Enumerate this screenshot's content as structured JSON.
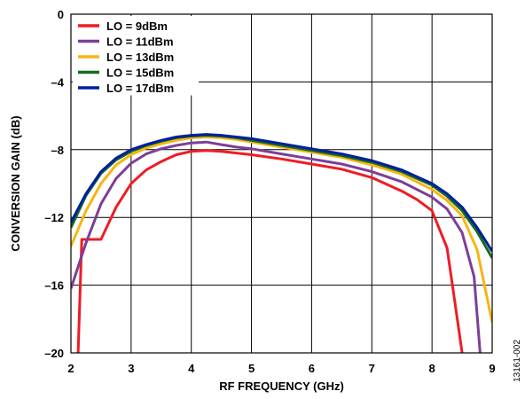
{
  "chart_data": {
    "type": "line",
    "title": "",
    "xlabel": "RF FREQUENCY (GHz)",
    "ylabel": "CONVERSION GAIN (dB)",
    "xlim": [
      2,
      9
    ],
    "ylim": [
      -20,
      0
    ],
    "xticks": [
      2,
      3,
      4,
      5,
      6,
      7,
      8,
      9
    ],
    "yticks": [
      0,
      -4,
      -8,
      -12,
      -16,
      -20
    ],
    "ytick_labels": [
      "0",
      "–4",
      "–8",
      "–12",
      "–16",
      "–20"
    ],
    "grid": true,
    "legend_position": "top-left",
    "figure_id": "13161-002",
    "series": [
      {
        "name": "LO = 9dBm",
        "color": "#ee1c25",
        "x": [
          2.12,
          2.18,
          2.25,
          2.5,
          2.75,
          3.0,
          3.25,
          3.5,
          3.75,
          4.0,
          4.25,
          4.5,
          4.75,
          5.0,
          5.5,
          6.0,
          6.5,
          7.0,
          7.5,
          7.75,
          8.0,
          8.25,
          8.4,
          8.5
        ],
        "y": [
          -20,
          -13.3,
          -13.3,
          -13.3,
          -11.4,
          -10.0,
          -9.2,
          -8.7,
          -8.3,
          -8.1,
          -8.05,
          -8.1,
          -8.2,
          -8.3,
          -8.55,
          -8.85,
          -9.15,
          -9.65,
          -10.45,
          -10.95,
          -11.6,
          -13.8,
          -17.5,
          -20
        ]
      },
      {
        "name": "LO = 11dBm",
        "color": "#7b3f98",
        "x": [
          2.0,
          2.25,
          2.5,
          2.75,
          3.0,
          3.25,
          3.5,
          3.75,
          4.0,
          4.25,
          4.5,
          4.75,
          5.0,
          5.5,
          6.0,
          6.5,
          7.0,
          7.5,
          8.0,
          8.25,
          8.5,
          8.7,
          8.8
        ],
        "y": [
          -16.2,
          -13.5,
          -11.2,
          -9.7,
          -8.8,
          -8.25,
          -7.95,
          -7.75,
          -7.6,
          -7.55,
          -7.7,
          -7.85,
          -7.95,
          -8.25,
          -8.55,
          -8.85,
          -9.3,
          -9.9,
          -10.8,
          -11.5,
          -12.9,
          -15.5,
          -20
        ]
      },
      {
        "name": "LO = 13dBm",
        "color": "#f7b512",
        "x": [
          2.0,
          2.25,
          2.5,
          2.75,
          3.0,
          3.25,
          3.5,
          3.75,
          4.0,
          4.25,
          4.5,
          4.75,
          5.0,
          5.5,
          6.0,
          6.5,
          7.0,
          7.5,
          8.0,
          8.25,
          8.5,
          8.75,
          9.0
        ],
        "y": [
          -13.7,
          -11.6,
          -10.0,
          -8.9,
          -8.3,
          -7.9,
          -7.65,
          -7.45,
          -7.3,
          -7.25,
          -7.3,
          -7.4,
          -7.55,
          -7.85,
          -8.15,
          -8.45,
          -8.9,
          -9.45,
          -10.35,
          -11.0,
          -11.9,
          -13.9,
          -18.2
        ]
      },
      {
        "name": "LO = 15dBm",
        "color": "#166c1e",
        "x": [
          2.0,
          2.25,
          2.5,
          2.75,
          3.0,
          3.25,
          3.5,
          3.75,
          4.0,
          4.25,
          4.5,
          4.75,
          5.0,
          5.5,
          6.0,
          6.5,
          7.0,
          7.5,
          8.0,
          8.25,
          8.5,
          8.75,
          9.0
        ],
        "y": [
          -12.6,
          -10.7,
          -9.4,
          -8.6,
          -8.1,
          -7.75,
          -7.5,
          -7.3,
          -7.2,
          -7.15,
          -7.2,
          -7.3,
          -7.45,
          -7.75,
          -8.05,
          -8.35,
          -8.75,
          -9.3,
          -10.1,
          -10.75,
          -11.6,
          -12.85,
          -14.4
        ]
      },
      {
        "name": "LO = 17dBm",
        "color": "#001f9e",
        "x": [
          2.0,
          2.25,
          2.5,
          2.75,
          3.0,
          3.25,
          3.5,
          3.75,
          4.0,
          4.25,
          4.5,
          4.75,
          5.0,
          5.5,
          6.0,
          6.5,
          7.0,
          7.5,
          8.0,
          8.25,
          8.5,
          8.75,
          9.0
        ],
        "y": [
          -12.3,
          -10.6,
          -9.3,
          -8.5,
          -8.0,
          -7.7,
          -7.45,
          -7.25,
          -7.15,
          -7.1,
          -7.15,
          -7.25,
          -7.35,
          -7.65,
          -7.95,
          -8.25,
          -8.65,
          -9.2,
          -10.0,
          -10.6,
          -11.4,
          -12.6,
          -14.0
        ]
      }
    ]
  }
}
